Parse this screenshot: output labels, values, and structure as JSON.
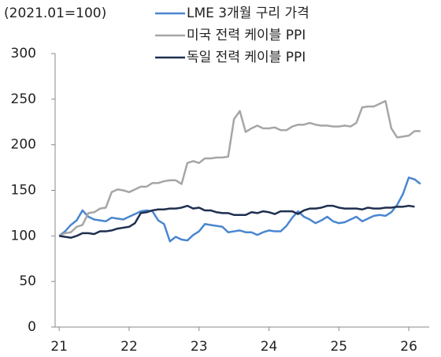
{
  "chart_data": {
    "type": "line",
    "unit_label": "(2021.01=100)",
    "x": [
      0,
      1,
      2,
      3,
      4,
      5,
      6,
      7,
      8,
      9,
      10,
      11,
      12,
      13,
      14,
      15,
      16,
      17,
      18,
      19,
      20,
      21,
      22,
      23,
      24,
      25,
      26,
      27,
      28,
      29,
      30,
      31,
      32,
      33,
      34,
      35,
      36,
      37,
      38,
      39,
      40,
      41,
      42,
      43,
      44,
      45,
      46,
      47,
      48,
      49,
      50,
      51,
      52,
      53,
      54,
      55,
      56,
      57,
      58,
      59,
      60,
      61,
      62
    ],
    "series": [
      {
        "name": "LME 3개월 구리 가격",
        "color": "#4a86d0",
        "values": [
          100,
          105,
          112,
          117,
          128,
          121,
          118,
          117,
          116,
          120,
          119,
          118,
          121,
          124,
          127,
          128,
          127,
          117,
          113,
          94,
          99,
          96,
          95,
          101,
          105,
          113,
          112,
          111,
          110,
          104,
          105,
          106,
          104,
          104,
          101,
          104,
          106,
          105,
          105,
          111,
          120,
          127,
          121,
          118,
          114,
          117,
          121,
          116,
          114,
          115,
          118,
          121,
          116,
          119,
          122,
          123,
          122,
          126,
          134,
          146,
          164,
          162,
          157
        ]
      },
      {
        "name": "미국 전력 케이블 PPI",
        "color": "#a6a6a6",
        "values": [
          100,
          103,
          104,
          110,
          112,
          125,
          126,
          130,
          131,
          148,
          151,
          150,
          148,
          151,
          154,
          154,
          158,
          158,
          160,
          161,
          161,
          157,
          180,
          182,
          180,
          185,
          185,
          186,
          186,
          187,
          228,
          237,
          214,
          218,
          221,
          218,
          218,
          219,
          216,
          216,
          220,
          222,
          222,
          224,
          222,
          221,
          221,
          220,
          220,
          221,
          220,
          224,
          241,
          242,
          242,
          245,
          248,
          218,
          208,
          209,
          210,
          215,
          215
        ]
      },
      {
        "name": "독일 전력 케이블 PPI",
        "color": "#1f2f4f",
        "values": [
          100,
          99,
          98,
          100,
          103,
          103,
          102,
          105,
          105,
          106,
          108,
          109,
          110,
          114,
          125,
          126,
          128,
          129,
          129,
          130,
          130,
          131,
          133,
          130,
          131,
          128,
          128,
          126,
          125,
          125,
          123,
          123,
          123,
          126,
          125,
          127,
          126,
          124,
          127,
          127,
          127,
          124,
          128,
          130,
          130,
          131,
          133,
          133,
          131,
          130,
          130,
          130,
          129,
          131,
          130,
          130,
          131,
          131,
          132,
          132,
          133,
          132,
          null
        ]
      }
    ],
    "xlim": [
      -0.7,
      63.5
    ],
    "xticks": [
      {
        "value": 0,
        "label": "21"
      },
      {
        "value": 12,
        "label": "22"
      },
      {
        "value": 24,
        "label": "23"
      },
      {
        "value": 36,
        "label": "24"
      },
      {
        "value": 48,
        "label": "25"
      },
      {
        "value": 60,
        "label": "26"
      }
    ],
    "ylim": [
      0,
      300
    ],
    "yticks": [
      0,
      50,
      100,
      150,
      200,
      250,
      300
    ],
    "grid": false
  }
}
